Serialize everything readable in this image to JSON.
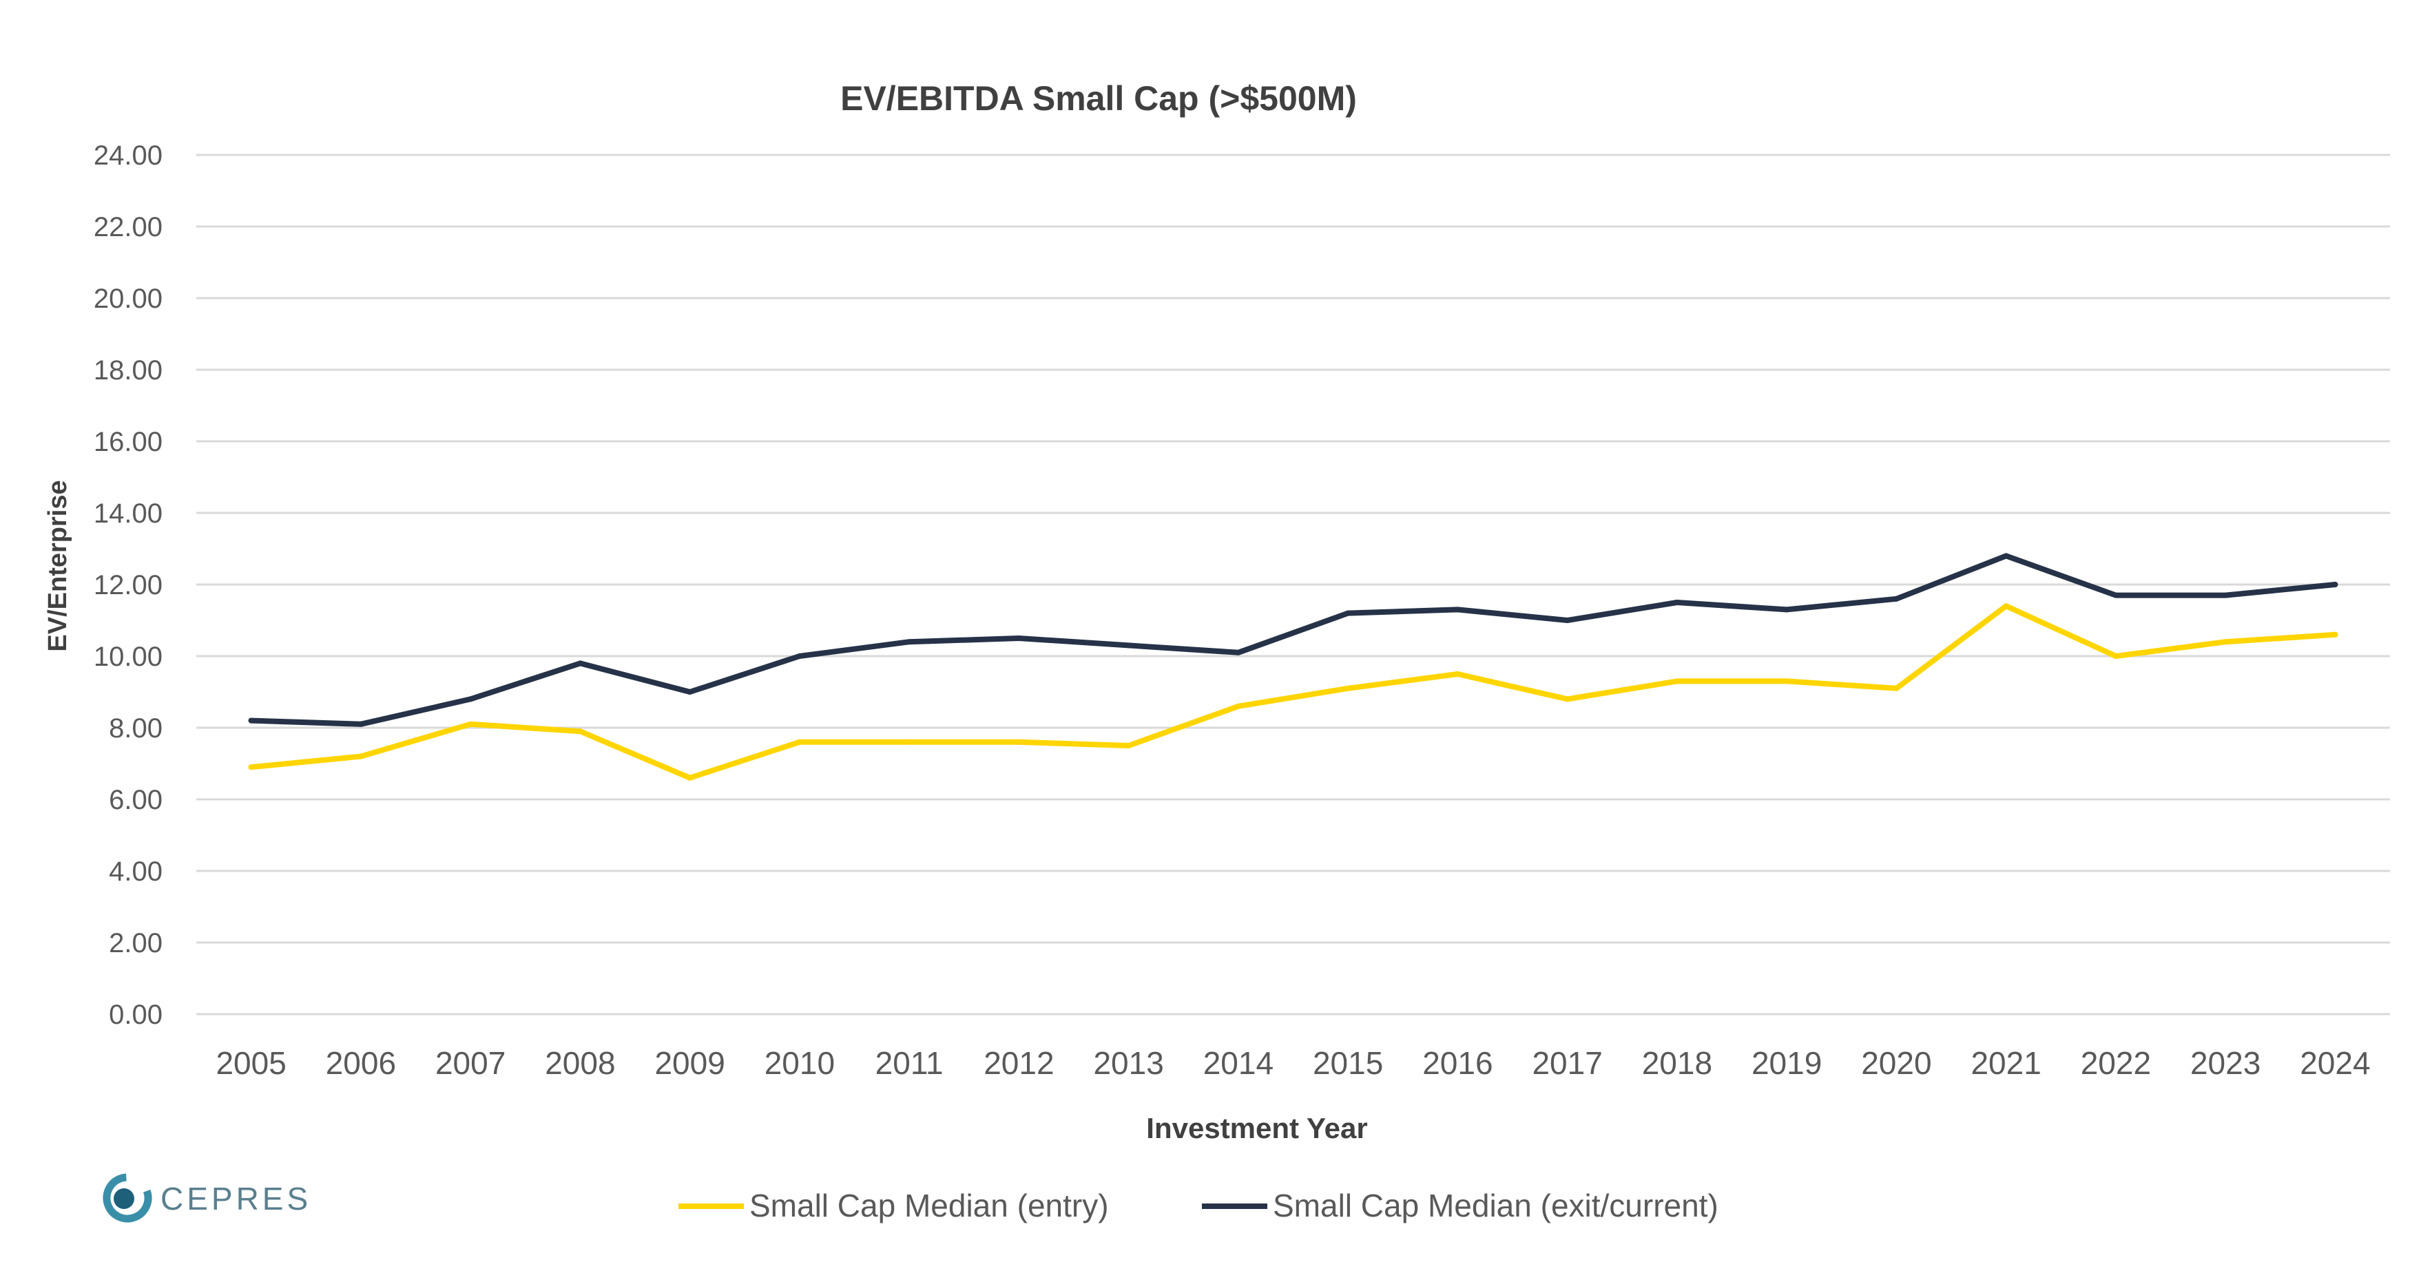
{
  "logo": {
    "text": "CEPRES"
  },
  "chart_data": {
    "type": "line",
    "title": "EV/EBITDA Small Cap (>$500M)",
    "xlabel": "Investment Year",
    "ylabel": "EV/Enterprise",
    "ylim": [
      0,
      24
    ],
    "ytick_step": 2,
    "ytick_labels": [
      "0.00",
      "2.00",
      "4.00",
      "6.00",
      "8.00",
      "10.00",
      "12.00",
      "14.00",
      "16.00",
      "18.00",
      "20.00",
      "22.00",
      "24.00"
    ],
    "grid": true,
    "legend_position": "bottom",
    "categories": [
      "2005",
      "2006",
      "2007",
      "2008",
      "2009",
      "2010",
      "2011",
      "2012",
      "2013",
      "2014",
      "2015",
      "2016",
      "2017",
      "2018",
      "2019",
      "2020",
      "2021",
      "2022",
      "2023",
      "2024"
    ],
    "series": [
      {
        "name": "Small Cap Median (entry)",
        "color": "#FFD500",
        "values": [
          6.9,
          7.2,
          8.1,
          7.9,
          6.6,
          7.6,
          7.6,
          7.6,
          7.5,
          8.6,
          9.1,
          9.5,
          8.8,
          9.3,
          9.3,
          9.1,
          11.4,
          10.0,
          10.4,
          10.6
        ]
      },
      {
        "name": "Small Cap Median (exit/current)",
        "color": "#263248",
        "values": [
          8.2,
          8.1,
          8.8,
          9.8,
          9.0,
          10.0,
          10.4,
          10.5,
          10.3,
          10.1,
          11.2,
          11.3,
          11.0,
          11.5,
          11.3,
          11.6,
          12.8,
          11.7,
          11.7,
          12.0
        ]
      }
    ]
  }
}
